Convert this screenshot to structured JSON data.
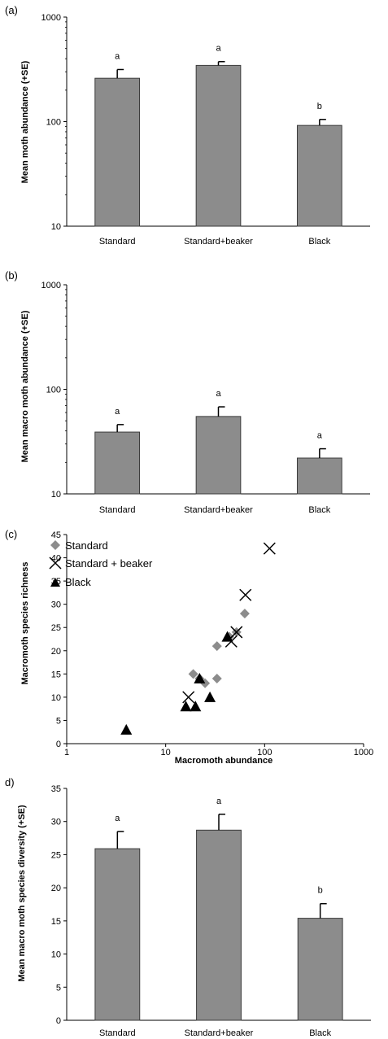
{
  "chart_data": [
    {
      "panel_label": "(a)",
      "type": "bar",
      "ylabel": "Mean moth abundance (+SE)",
      "yscale": "log",
      "ylim": [
        10,
        1000
      ],
      "yticks": [
        "10",
        "100",
        "1000"
      ],
      "categories": [
        "Standard",
        "Standard+beaker",
        "Black"
      ],
      "values": [
        260,
        345,
        92
      ],
      "se_upper": [
        315,
        375,
        105
      ],
      "letters": [
        "a",
        "a",
        "b"
      ],
      "bar_color": "#8c8c8c"
    },
    {
      "panel_label": "(b)",
      "type": "bar",
      "ylabel": "Mean macro moth abundance (+SE)",
      "yscale": "log",
      "ylim": [
        10,
        1000
      ],
      "yticks": [
        "10",
        "100",
        "1000"
      ],
      "categories": [
        "Standard",
        "Standard+beaker",
        "Black"
      ],
      "values": [
        39,
        55,
        22
      ],
      "se_upper": [
        46,
        68,
        27
      ],
      "letters": [
        "a",
        "a",
        "a"
      ],
      "bar_color": "#8c8c8c"
    },
    {
      "panel_label": "(c)",
      "type": "scatter",
      "xlabel": "Macromoth abundance",
      "ylabel": "Macromoth species richness",
      "xscale": "log",
      "xlim": [
        1,
        1000
      ],
      "ylim": [
        0,
        45
      ],
      "xticks": [
        "1",
        "10",
        "100",
        "1000"
      ],
      "yticks": [
        "0",
        "5",
        "10",
        "15",
        "20",
        "25",
        "30",
        "35",
        "40",
        "45"
      ],
      "legend_position": "top-left",
      "series": [
        {
          "name": "Standard",
          "marker": "diamond",
          "color": "#8c8c8c",
          "points": [
            [
              19,
              15
            ],
            [
              22,
              14
            ],
            [
              25,
              13
            ],
            [
              33,
              14
            ],
            [
              33,
              21
            ],
            [
              44,
              23
            ],
            [
              52,
              24
            ],
            [
              63,
              28
            ]
          ]
        },
        {
          "name": "Standard + beaker",
          "marker": "x",
          "color": "#000000",
          "points": [
            [
              17,
              10
            ],
            [
              46,
              22
            ],
            [
              52,
              24
            ],
            [
              64,
              32
            ],
            [
              112,
              42
            ]
          ]
        },
        {
          "name": "Black",
          "marker": "triangle",
          "color": "#000000",
          "points": [
            [
              4,
              3
            ],
            [
              16,
              8
            ],
            [
              20,
              8
            ],
            [
              22,
              14
            ],
            [
              28,
              10
            ],
            [
              42,
              23
            ]
          ]
        }
      ]
    },
    {
      "panel_label": "d)",
      "type": "bar",
      "ylabel": "Mean macro moth species diversity (+SE)",
      "yscale": "linear",
      "ylim": [
        0,
        35
      ],
      "yticks": [
        "0",
        "5",
        "10",
        "15",
        "20",
        "25",
        "30",
        "35"
      ],
      "categories": [
        "Standard",
        "Standard+beaker",
        "Black"
      ],
      "values": [
        25.9,
        28.7,
        15.4
      ],
      "se_upper": [
        28.5,
        31.1,
        17.6
      ],
      "letters": [
        "a",
        "a",
        "b"
      ],
      "bar_color": "#8c8c8c"
    }
  ]
}
